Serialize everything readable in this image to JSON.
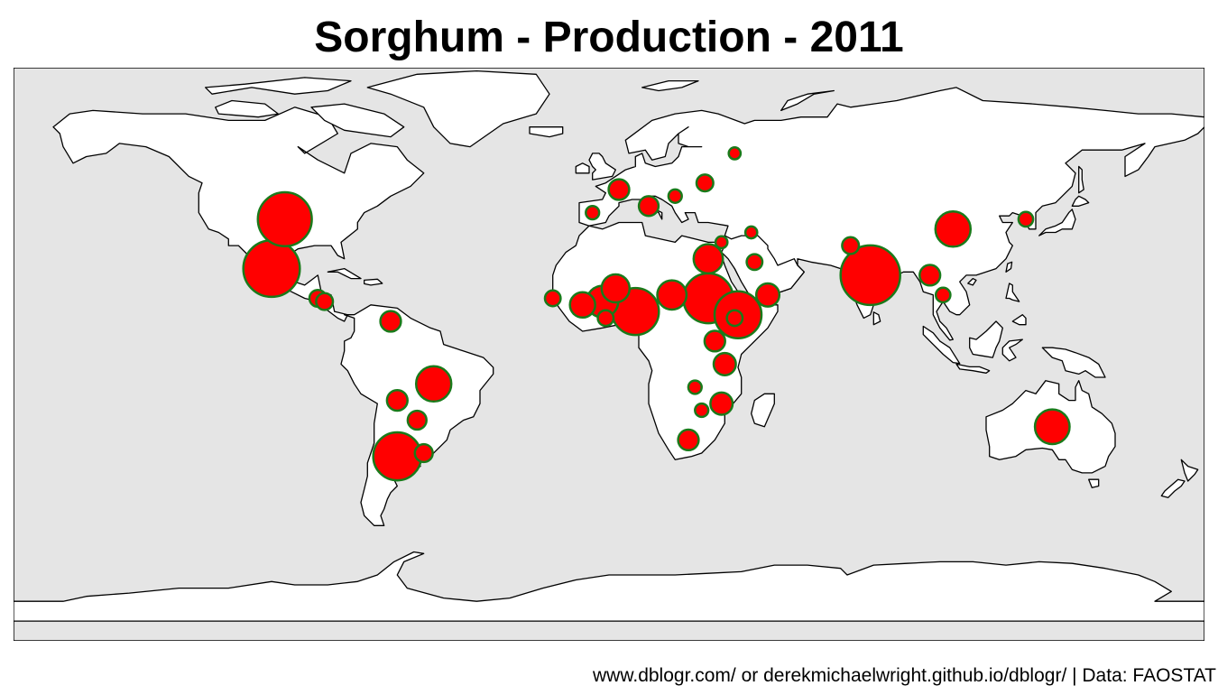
{
  "title": "Sorghum - Production - 2011",
  "caption": "www.dblogr.com/ or derekmichaelwright.github.io/dblogr/ | Data: FAOSTAT",
  "map": {
    "projection": "equirectangular",
    "ocean_color": "#e5e5e5",
    "land_color": "#ffffff",
    "border_color": "#000000",
    "bubble_fill": "#ff0000",
    "bubble_stroke": "#1a7a1a"
  },
  "chart_data": {
    "type": "bubble-map",
    "title": "Sorghum - Production - 2011",
    "note": "Bubble area proportional to production; relative sizes estimated from the image (largest = 1.0).",
    "points": [
      {
        "lon": -98,
        "lat": 38,
        "size": 0.82
      },
      {
        "lon": -102,
        "lat": 23,
        "size": 0.9
      },
      {
        "lon": 79,
        "lat": 21,
        "size": 1.0
      },
      {
        "lon": 8,
        "lat": 10,
        "size": 0.62
      },
      {
        "lon": 30,
        "lat": 14,
        "size": 0.7
      },
      {
        "lon": 39,
        "lat": 9,
        "size": 0.62
      },
      {
        "lon": -64,
        "lat": -34,
        "size": 0.65
      },
      {
        "lon": 104,
        "lat": 35,
        "size": 0.35
      },
      {
        "lon": 134,
        "lat": -25,
        "size": 0.34
      },
      {
        "lon": -53,
        "lat": -12,
        "size": 0.35
      },
      {
        "lon": -2,
        "lat": 13,
        "size": 0.28
      },
      {
        "lon": 19,
        "lat": 15,
        "size": 0.24
      },
      {
        "lon": 2,
        "lat": 17,
        "size": 0.22
      },
      {
        "lon": -8,
        "lat": 12,
        "size": 0.18
      },
      {
        "lon": 30,
        "lat": 26,
        "size": 0.24
      },
      {
        "lon": 48,
        "lat": 15,
        "size": 0.15
      },
      {
        "lon": 32,
        "lat": 1,
        "size": 0.12
      },
      {
        "lon": 35,
        "lat": -6,
        "size": 0.14
      },
      {
        "lon": 34,
        "lat": -18,
        "size": 0.14
      },
      {
        "lon": 24,
        "lat": -29,
        "size": 0.12
      },
      {
        "lon": -66,
        "lat": 7,
        "size": 0.12
      },
      {
        "lon": -64,
        "lat": -17,
        "size": 0.12
      },
      {
        "lon": -58,
        "lat": -23,
        "size": 0.1
      },
      {
        "lon": -56,
        "lat": -33,
        "size": 0.09
      },
      {
        "lon": 97,
        "lat": 21,
        "size": 0.12
      },
      {
        "lon": 3,
        "lat": 47,
        "size": 0.12
      },
      {
        "lon": 12,
        "lat": 42,
        "size": 0.11
      },
      {
        "lon": 29,
        "lat": 49,
        "size": 0.08
      },
      {
        "lon": 73,
        "lat": 30,
        "size": 0.08
      },
      {
        "lon": 44,
        "lat": 25,
        "size": 0.07
      },
      {
        "lon": -88,
        "lat": 14,
        "size": 0.08
      },
      {
        "lon": -86,
        "lat": 13,
        "size": 0.08
      },
      {
        "lon": -17,
        "lat": 14,
        "size": 0.07
      },
      {
        "lon": -1,
        "lat": 8,
        "size": 0.07
      },
      {
        "lon": 38,
        "lat": 8,
        "size": 0.07
      },
      {
        "lon": 101,
        "lat": 15,
        "size": 0.06
      },
      {
        "lon": 126,
        "lat": 38,
        "size": 0.06
      },
      {
        "lon": 20,
        "lat": 45,
        "size": 0.05
      },
      {
        "lon": -5,
        "lat": 40,
        "size": 0.05
      },
      {
        "lon": 38,
        "lat": 58,
        "size": 0.04
      },
      {
        "lon": 26,
        "lat": -13,
        "size": 0.05
      },
      {
        "lon": 28,
        "lat": -20,
        "size": 0.05
      },
      {
        "lon": 34,
        "lat": 31,
        "size": 0.04
      },
      {
        "lon": 43,
        "lat": 34,
        "size": 0.04
      }
    ]
  }
}
